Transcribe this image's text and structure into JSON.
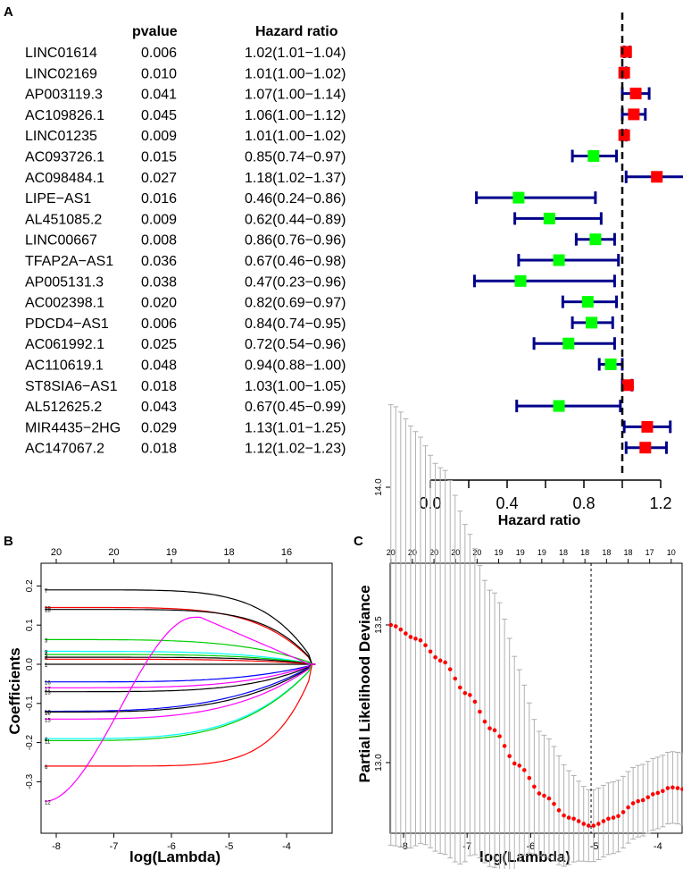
{
  "panel_labels": {
    "a": "A",
    "b": "B",
    "c": "C"
  },
  "colors": {
    "navy": "#00008b",
    "risk": "#ff0000",
    "protect": "#00ff00",
    "ref": "#000000",
    "dev": "#ff0000",
    "errbar": "#b0b0b0"
  },
  "chart_data": [
    {
      "type": "forest",
      "panel": "A",
      "col_pvalue": "pvalue",
      "col_hr": "Hazard ratio",
      "xlabel": "Hazard ratio",
      "xticks": [
        "0.0",
        "0.4",
        "0.8",
        "1.2"
      ],
      "xlim": [
        0.0,
        1.4
      ],
      "reference_line": 1.0,
      "rows": [
        {
          "gene": "LINC01614",
          "p": "0.006",
          "hr_text": "1.02(1.01−1.04)",
          "hr": 1.02,
          "lo": 1.01,
          "hi": 1.04
        },
        {
          "gene": "LINC02169",
          "p": "0.010",
          "hr_text": "1.01(1.00−1.02)",
          "hr": 1.01,
          "lo": 1.0,
          "hi": 1.02
        },
        {
          "gene": "AP003119.3",
          "p": "0.041",
          "hr_text": "1.07(1.00−1.14)",
          "hr": 1.07,
          "lo": 1.0,
          "hi": 1.14
        },
        {
          "gene": "AC109826.1",
          "p": "0.045",
          "hr_text": "1.06(1.00−1.12)",
          "hr": 1.06,
          "lo": 1.0,
          "hi": 1.12
        },
        {
          "gene": "LINC01235",
          "p": "0.009",
          "hr_text": "1.01(1.00−1.02)",
          "hr": 1.01,
          "lo": 1.0,
          "hi": 1.02
        },
        {
          "gene": "AC093726.1",
          "p": "0.015",
          "hr_text": "0.85(0.74−0.97)",
          "hr": 0.85,
          "lo": 0.74,
          "hi": 0.97
        },
        {
          "gene": "AC098484.1",
          "p": "0.027",
          "hr_text": "1.18(1.02−1.37)",
          "hr": 1.18,
          "lo": 1.02,
          "hi": 1.37
        },
        {
          "gene": "LIPE−AS1",
          "p": "0.016",
          "hr_text": "0.46(0.24−0.86)",
          "hr": 0.46,
          "lo": 0.24,
          "hi": 0.86
        },
        {
          "gene": "AL451085.2",
          "p": "0.009",
          "hr_text": "0.62(0.44−0.89)",
          "hr": 0.62,
          "lo": 0.44,
          "hi": 0.89
        },
        {
          "gene": "LINC00667",
          "p": "0.008",
          "hr_text": "0.86(0.76−0.96)",
          "hr": 0.86,
          "lo": 0.76,
          "hi": 0.96
        },
        {
          "gene": "TFAP2A−AS1",
          "p": "0.036",
          "hr_text": "0.67(0.46−0.98)",
          "hr": 0.67,
          "lo": 0.46,
          "hi": 0.98
        },
        {
          "gene": "AP005131.3",
          "p": "0.038",
          "hr_text": "0.47(0.23−0.96)",
          "hr": 0.47,
          "lo": 0.23,
          "hi": 0.96
        },
        {
          "gene": "AC002398.1",
          "p": "0.020",
          "hr_text": "0.82(0.69−0.97)",
          "hr": 0.82,
          "lo": 0.69,
          "hi": 0.97
        },
        {
          "gene": "PDCD4−AS1",
          "p": "0.006",
          "hr_text": "0.84(0.74−0.95)",
          "hr": 0.84,
          "lo": 0.74,
          "hi": 0.95
        },
        {
          "gene": "AC061992.1",
          "p": "0.025",
          "hr_text": "0.72(0.54−0.96)",
          "hr": 0.72,
          "lo": 0.54,
          "hi": 0.96
        },
        {
          "gene": "AC110619.1",
          "p": "0.048",
          "hr_text": "0.94(0.88−1.00)",
          "hr": 0.94,
          "lo": 0.88,
          "hi": 1.0
        },
        {
          "gene": "ST8SIA6−AS1",
          "p": "0.018",
          "hr_text": "1.03(1.00−1.05)",
          "hr": 1.03,
          "lo": 1.0,
          "hi": 1.05
        },
        {
          "gene": "AL512625.2",
          "p": "0.043",
          "hr_text": "0.67(0.45−0.99)",
          "hr": 0.67,
          "lo": 0.45,
          "hi": 0.99
        },
        {
          "gene": "MIR4435−2HG",
          "p": "0.029",
          "hr_text": "1.13(1.01−1.25)",
          "hr": 1.13,
          "lo": 1.01,
          "hi": 1.25
        },
        {
          "gene": "AC147067.2",
          "p": "0.018",
          "hr_text": "1.12(1.02−1.23)",
          "hr": 1.12,
          "lo": 1.02,
          "hi": 1.23
        }
      ]
    },
    {
      "type": "line",
      "panel": "B",
      "xlabel": "log(Lambda)",
      "ylabel": "Coefficients",
      "xlim": [
        -8.3,
        -3.3
      ],
      "ylim": [
        -0.36,
        0.22
      ],
      "xticks": [
        "-8",
        "-7",
        "-6",
        "-5",
        "-4"
      ],
      "yticks": [
        "-0.3",
        "-0.2",
        "-0.1",
        "0.0",
        "0.1",
        "0.2"
      ],
      "top_ticks": [
        {
          "x": -8.0,
          "label": "20"
        },
        {
          "x": -7.0,
          "label": "20"
        },
        {
          "x": -6.0,
          "label": "19"
        },
        {
          "x": -5.0,
          "label": "18"
        },
        {
          "x": -4.0,
          "label": "16"
        }
      ],
      "series_start": -8.2,
      "series_end": -3.5,
      "series": [
        {
          "label": "7",
          "start": 0.19,
          "k": 1.45,
          "color": "#000000"
        },
        {
          "label": "20",
          "start": 0.145,
          "k": 1.3,
          "color": "#ff0000"
        },
        {
          "label": "18",
          "start": 0.14,
          "k": 1.5,
          "color": "#000000"
        },
        {
          "label": "3",
          "start": 0.063,
          "k": 1.0,
          "color": "#00cd00"
        },
        {
          "label": "9",
          "start": 0.033,
          "k": 1.0,
          "color": "#00ffff"
        },
        {
          "label": "5",
          "start": 0.025,
          "k": 1.1,
          "color": "#00cd00"
        },
        {
          "label": "4",
          "start": 0.018,
          "k": 1.2,
          "color": "#000000"
        },
        {
          "label": "",
          "start": 0.013,
          "k": 1.0,
          "color": "#ff0000"
        },
        {
          "label": "1",
          "start": 0.0,
          "k": 1.0,
          "color": "#000000"
        },
        {
          "label": "16",
          "start": -0.045,
          "k": 1.0,
          "color": "#0000ff"
        },
        {
          "label": "17",
          "start": -0.06,
          "k": 1.0,
          "color": "#ff00ff"
        },
        {
          "label": "13",
          "start": -0.07,
          "k": 1.1,
          "color": "#000000"
        },
        {
          "label": "12",
          "start": -0.12,
          "k": 0.8,
          "color": "#0000ff"
        },
        {
          "label": "10",
          "start": -0.122,
          "k": 0.9,
          "color": "#000000"
        },
        {
          "label": "15",
          "start": -0.14,
          "k": 0.9,
          "color": "#ff00ff"
        },
        {
          "label": "8",
          "start": -0.19,
          "k": 1.0,
          "color": "#00ffff"
        },
        {
          "label": "11",
          "start": -0.195,
          "k": 1.0,
          "color": "#00cd00"
        },
        {
          "label": "6",
          "start": -0.26,
          "k": 1.8,
          "color": "#ff0000"
        },
        {
          "label": "12",
          "start": -0.35,
          "k": 1.0,
          "color": "#ff00ff",
          "special": true
        }
      ]
    },
    {
      "type": "line",
      "panel": "C",
      "xlabel": "log(Lambda)",
      "ylabel": "Partial Likelihood Deviance",
      "xlim": [
        -8.4,
        -3.2
      ],
      "ylim": [
        12.7,
        14.35
      ],
      "xticks": [
        "-8",
        "-7",
        "-6",
        "-5",
        "-4"
      ],
      "yticks": [
        "13.0",
        "13.5",
        "14.0"
      ],
      "top_labels": [
        "20",
        "20",
        "20",
        "20",
        "20",
        "19",
        "19",
        "19",
        "18",
        "18",
        "18",
        "18",
        "17",
        "10",
        "1"
      ],
      "top_range": [
        -8.2,
        -3.45
      ],
      "vlines": [
        -5.05,
        -3.42
      ],
      "dev_start": -8.2,
      "dev_end": -3.3,
      "dev_points": [
        [
          -8.2,
          13.5
        ],
        [
          -7.8,
          13.45
        ],
        [
          -7.4,
          13.37
        ],
        [
          -7.0,
          13.25
        ],
        [
          -6.6,
          13.12
        ],
        [
          -6.2,
          12.99
        ],
        [
          -5.8,
          12.88
        ],
        [
          -5.4,
          12.8
        ],
        [
          -5.05,
          12.77
        ],
        [
          -4.7,
          12.8
        ],
        [
          -4.3,
          12.86
        ],
        [
          -4.0,
          12.89
        ],
        [
          -3.8,
          12.91
        ],
        [
          -3.3,
          12.89
        ]
      ],
      "err_points": [
        [
          -8.2,
          0.8
        ],
        [
          -7.4,
          0.7
        ],
        [
          -6.6,
          0.5
        ],
        [
          -5.8,
          0.22
        ],
        [
          -5.05,
          0.13
        ],
        [
          -4.3,
          0.13
        ],
        [
          -3.3,
          0.13
        ]
      ]
    }
  ]
}
